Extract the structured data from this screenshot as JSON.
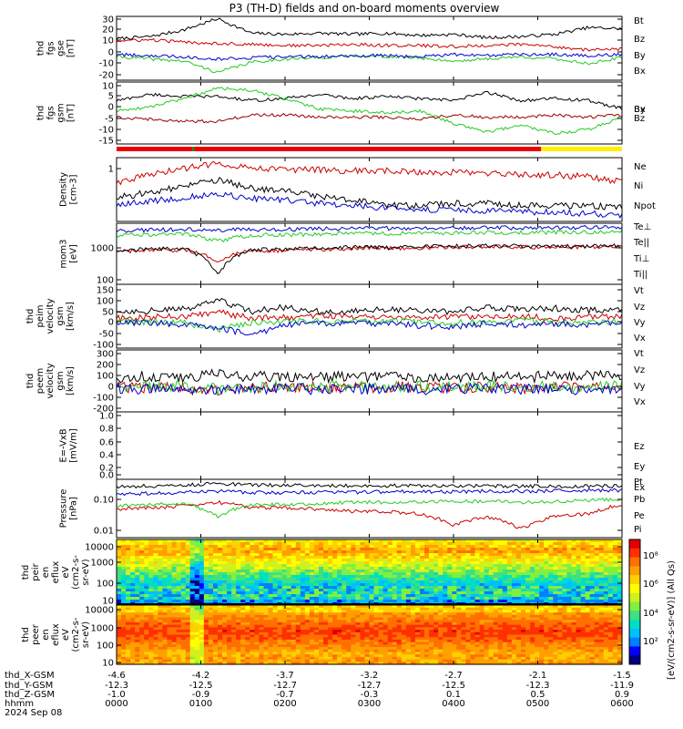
{
  "title": "P3 (TH-D) fields and on-board moments overview",
  "chart_data": [
    {
      "type": "line",
      "ylabel": [
        "thd",
        "fgs",
        "gse",
        "[nT]"
      ],
      "ylim": [
        -25,
        32
      ],
      "yticks": [
        "30",
        "20",
        "10",
        "0",
        "-10",
        "-20"
      ],
      "series": [
        {
          "name": "Bt",
          "color": "#000000",
          "values": [
            12,
            14,
            20,
            30,
            17,
            16,
            17,
            16,
            17,
            15,
            16,
            13,
            14,
            16,
            22,
            21
          ]
        },
        {
          "name": "Bz",
          "color": "#cc0000",
          "values": [
            10,
            11,
            9,
            8,
            7,
            6,
            6,
            7,
            6,
            6,
            5,
            6,
            7,
            5,
            2,
            3
          ]
        },
        {
          "name": "By",
          "color": "#22cc22",
          "values": [
            -4,
            -6,
            -8,
            -18,
            -9,
            -6,
            -5,
            -3,
            -4,
            -5,
            -8,
            -6,
            -4,
            -6,
            -10,
            -5
          ]
        },
        {
          "name": "Bx",
          "color": "#0000cc",
          "values": [
            -2,
            -3,
            -4,
            -6,
            -5,
            -4,
            -4,
            -3,
            -3,
            -4,
            -2,
            -3,
            -2,
            -2,
            -3,
            -2
          ]
        }
      ]
    },
    {
      "type": "line",
      "ylabel": [
        "thd",
        "fgs",
        "gsm",
        "[nT]"
      ],
      "ylim": [
        -19,
        11
      ],
      "yticks": [
        "10",
        "5",
        "0",
        "-5",
        "-10",
        "-15"
      ],
      "series": [
        {
          "name": "Bx",
          "color": "#000000",
          "values": [
            2,
            5,
            4,
            4,
            2,
            3,
            5,
            3,
            4,
            3,
            2,
            6,
            2,
            3,
            2,
            -2
          ]
        },
        {
          "name": "By",
          "color": "#22cc22",
          "values": [
            -3,
            -1,
            3,
            8,
            7,
            3,
            -2,
            -3,
            -4,
            -3,
            -9,
            -13,
            -10,
            -14,
            -12,
            -6
          ]
        },
        {
          "name": "Bz",
          "color": "#990000",
          "values": [
            -6,
            -7,
            -8,
            -8,
            -5,
            -5,
            -6,
            -6,
            -6,
            -7,
            -5,
            -6,
            -6,
            -5,
            -6,
            -5
          ]
        }
      ]
    },
    {
      "type": "line",
      "ylabel": [
        "Density",
        "[cm-3]"
      ],
      "yscale": "log",
      "ylim": [
        0.1,
        1.6
      ],
      "yticks": [
        "1"
      ],
      "series": [
        {
          "name": "Ne",
          "color": "#cc0000",
          "values": [
            0.55,
            0.75,
            1.0,
            1.25,
            1.05,
            0.95,
            0.95,
            0.9,
            0.9,
            0.85,
            0.85,
            0.8,
            0.75,
            0.75,
            0.7,
            0.55
          ]
        },
        {
          "name": "Ni",
          "color": "#000000",
          "values": [
            0.28,
            0.35,
            0.45,
            0.6,
            0.42,
            0.38,
            0.3,
            0.25,
            0.2,
            0.2,
            0.22,
            0.22,
            0.2,
            0.2,
            0.2,
            0.18
          ]
        },
        {
          "name": "Npot",
          "color": "#0000cc",
          "values": [
            0.2,
            0.24,
            0.28,
            0.33,
            0.27,
            0.25,
            0.22,
            0.2,
            0.18,
            0.17,
            0.16,
            0.16,
            0.15,
            0.15,
            0.14,
            0.13
          ]
        }
      ]
    },
    {
      "type": "line",
      "ylabel": [
        "mom3",
        "[eV]"
      ],
      "yscale": "log",
      "ylim": [
        100,
        6000
      ],
      "yticks": [
        "1000",
        "100"
      ],
      "series": [
        {
          "name": "Te⊥",
          "color": "#cc0000",
          "values": [
            900,
            950,
            1000,
            500,
            950,
            980,
            1050,
            1100,
            1150,
            1150,
            1200,
            1250,
            1200,
            1200,
            1250,
            1200
          ]
        },
        {
          "name": "Te||",
          "color": "#000000",
          "values": [
            1000,
            1050,
            1100,
            180,
            1000,
            1050,
            1150,
            1200,
            1200,
            1250,
            1300,
            1300,
            1300,
            1250,
            1300,
            1300
          ]
        },
        {
          "name": "Ti⊥",
          "color": "#0000cc",
          "values": [
            3500,
            3800,
            4000,
            3800,
            3900,
            4000,
            4100,
            4200,
            4300,
            4300,
            4400,
            4500,
            4400,
            4500,
            4500,
            4500
          ]
        },
        {
          "name": "Ti||",
          "color": "#22cc22",
          "values": [
            2600,
            2800,
            2900,
            1800,
            2700,
            2800,
            2900,
            3000,
            3000,
            3100,
            3100,
            3200,
            3200,
            3300,
            3300,
            3400
          ]
        }
      ]
    },
    {
      "type": "line",
      "ylabel": [
        "thd",
        "peim",
        "velocity",
        "gsm",
        "[km/s]"
      ],
      "ylim": [
        -120,
        160
      ],
      "yticks": [
        "150",
        "100",
        "50",
        "0",
        "-50",
        "-100"
      ],
      "series": [
        {
          "name": "Vt",
          "color": "#000000",
          "values": [
            40,
            45,
            50,
            90,
            40,
            60,
            40,
            40,
            50,
            45,
            40,
            60,
            50,
            55,
            45,
            55
          ]
        },
        {
          "name": "Vz",
          "color": "#cc0000",
          "values": [
            10,
            15,
            20,
            40,
            10,
            15,
            20,
            15,
            20,
            15,
            15,
            20,
            20,
            10,
            15,
            20
          ]
        },
        {
          "name": "Vy",
          "color": "#22cc22",
          "values": [
            0,
            -5,
            -10,
            -40,
            -10,
            -5,
            0,
            -5,
            0,
            -5,
            -10,
            -5,
            0,
            -5,
            -10,
            0
          ]
        },
        {
          "name": "Vx",
          "color": "#0000cc",
          "values": [
            -5,
            -10,
            -15,
            -30,
            -60,
            -20,
            -10,
            -10,
            -15,
            -20,
            -30,
            -10,
            -20,
            -15,
            -20,
            -10
          ]
        }
      ]
    },
    {
      "type": "line",
      "ylabel": [
        "thd",
        "peem",
        "velocity",
        "gsm",
        "[km/s]"
      ],
      "ylim": [
        -250,
        320
      ],
      "yticks": [
        "300",
        "200",
        "100",
        "0",
        "-100",
        "-200"
      ],
      "series": [
        {
          "name": "Vt",
          "color": "#000000",
          "values": [
            60,
            80,
            70,
            100,
            70,
            80,
            70,
            75,
            80,
            70,
            75,
            80,
            70,
            80,
            85,
            90
          ]
        },
        {
          "name": "Vz",
          "color": "#cc0000",
          "values": [
            -20,
            -30,
            -20,
            -60,
            -30,
            -20,
            -25,
            -30,
            -20,
            -25,
            -30,
            -20,
            -30,
            -25,
            -30,
            -20
          ]
        },
        {
          "name": "Vy",
          "color": "#22cc22",
          "values": [
            -10,
            -20,
            -15,
            -40,
            -20,
            -15,
            -20,
            -15,
            -20,
            -15,
            -20,
            -15,
            -20,
            -15,
            -20,
            -15
          ]
        },
        {
          "name": "Vx",
          "color": "#0000cc",
          "values": [
            -30,
            -40,
            -35,
            -60,
            -40,
            -35,
            -40,
            -35,
            -40,
            -45,
            -40,
            -35,
            -40,
            -45,
            -40,
            -35
          ]
        }
      ]
    },
    {
      "type": "line",
      "ylabel": [
        "E=-VxB",
        "[mV/m]"
      ],
      "ylim": [
        -0.05,
        1.05
      ],
      "yticks": [
        "1.0",
        "0.8",
        "0.6",
        "0.4",
        "0.2",
        "0.0"
      ],
      "series": [
        {
          "name": "Ez",
          "color": "#cc0000",
          "values": []
        },
        {
          "name": "Ey",
          "color": "#22cc22",
          "values": []
        },
        {
          "name": "Ex",
          "color": "#0000cc",
          "values": []
        }
      ]
    },
    {
      "type": "line",
      "ylabel": [
        "Pressure",
        "[nPa]"
      ],
      "yscale": "log",
      "ylim": [
        0.008,
        0.7
      ],
      "yticks": [
        "0.10",
        "0.01"
      ],
      "series": [
        {
          "name": "Pt",
          "color": "#000000",
          "values": [
            0.4,
            0.42,
            0.45,
            0.5,
            0.45,
            0.44,
            0.44,
            0.43,
            0.43,
            0.42,
            0.42,
            0.42,
            0.41,
            0.41,
            0.41,
            0.42
          ]
        },
        {
          "name": "Pb",
          "color": "#cc0000",
          "values": [
            0.07,
            0.08,
            0.09,
            0.12,
            0.08,
            0.08,
            0.07,
            0.06,
            0.06,
            0.05,
            0.02,
            0.04,
            0.015,
            0.04,
            0.05,
            0.1
          ]
        },
        {
          "name": "Pe",
          "color": "#22cc22",
          "values": [
            0.09,
            0.1,
            0.11,
            0.04,
            0.1,
            0.1,
            0.11,
            0.12,
            0.12,
            0.12,
            0.13,
            0.13,
            0.12,
            0.13,
            0.14,
            0.15
          ]
        },
        {
          "name": "Pi",
          "color": "#0000cc",
          "values": [
            0.22,
            0.24,
            0.26,
            0.28,
            0.25,
            0.25,
            0.26,
            0.26,
            0.27,
            0.27,
            0.27,
            0.28,
            0.28,
            0.29,
            0.3,
            0.3
          ]
        }
      ]
    },
    {
      "type": "heatmap",
      "ylabel": [
        "thd",
        "peir",
        "en",
        "eflux",
        "eV",
        "(cm2-s-",
        "sr-eV)"
      ],
      "yscale": "log",
      "yticks": [
        "10000",
        "1000",
        "100",
        "10"
      ]
    },
    {
      "type": "heatmap",
      "ylabel": [
        "thd",
        "peer",
        "en",
        "eflux",
        "eV",
        "(cm2-s-",
        "sr-eV)"
      ],
      "yscale": "log",
      "yticks": [
        "10000",
        "1000",
        "100",
        "10"
      ]
    }
  ],
  "colorbar": {
    "ticks": [
      "10⁸",
      "10⁶",
      "10⁴",
      "10²"
    ],
    "label": "[eV/(cm2-s-sr-eV)] (All Qs)"
  },
  "xaxis": {
    "rows": [
      {
        "label": "thd_X-GSM",
        "values": [
          "-4.6",
          "-4.2",
          "-3.7",
          "-3.2",
          "-2.7",
          "-2.1",
          "-1.5"
        ]
      },
      {
        "label": "thd_Y-GSM",
        "values": [
          "-12.3",
          "-12.5",
          "-12.7",
          "-12.7",
          "-12.5",
          "-12.3",
          "-11.9"
        ]
      },
      {
        "label": "thd_Z-GSM",
        "values": [
          "-1.0",
          "-0.9",
          "-0.7",
          "-0.3",
          "0.1",
          "0.5",
          "0.9"
        ]
      },
      {
        "label": "hhmm",
        "values": [
          "0000",
          "0100",
          "0200",
          "0300",
          "0400",
          "0500",
          "0600"
        ]
      }
    ],
    "date": "2024 Sep 08"
  }
}
